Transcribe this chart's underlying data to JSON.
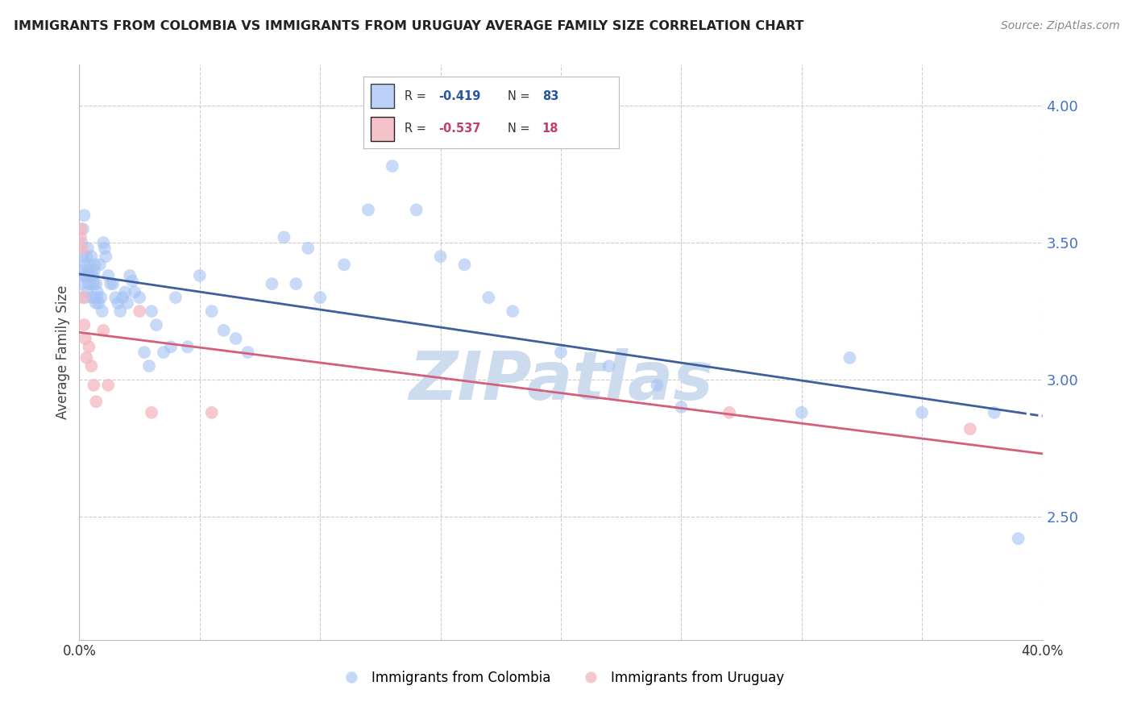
{
  "title": "IMMIGRANTS FROM COLOMBIA VS IMMIGRANTS FROM URUGUAY AVERAGE FAMILY SIZE CORRELATION CHART",
  "source": "Source: ZipAtlas.com",
  "ylabel": "Average Family Size",
  "y_ticks": [
    2.5,
    3.0,
    3.5,
    4.0
  ],
  "x_min": 0.0,
  "x_max": 40.0,
  "y_min": 2.05,
  "y_max": 4.15,
  "colombia_color": "#a4c2f4",
  "uruguay_color": "#f4b8c1",
  "colombia_line_color": "#3d5f9e",
  "uruguay_line_color": "#d45f7a",
  "axis_label_color": "#4472c4",
  "colombia_R": -0.419,
  "colombia_N": 83,
  "uruguay_R": -0.537,
  "uruguay_N": 18,
  "colombia_points_x": [
    0.05,
    0.08,
    0.1,
    0.12,
    0.15,
    0.18,
    0.2,
    0.22,
    0.25,
    0.28,
    0.3,
    0.32,
    0.35,
    0.38,
    0.4,
    0.42,
    0.45,
    0.48,
    0.5,
    0.55,
    0.58,
    0.6,
    0.62,
    0.65,
    0.68,
    0.7,
    0.72,
    0.75,
    0.8,
    0.85,
    0.9,
    0.95,
    1.0,
    1.05,
    1.1,
    1.2,
    1.3,
    1.4,
    1.5,
    1.6,
    1.7,
    1.8,
    1.9,
    2.0,
    2.1,
    2.2,
    2.3,
    2.5,
    2.7,
    2.9,
    3.0,
    3.2,
    3.5,
    3.8,
    4.0,
    4.5,
    5.0,
    5.5,
    6.0,
    6.5,
    7.0,
    8.0,
    8.5,
    9.0,
    9.5,
    10.0,
    11.0,
    12.0,
    13.0,
    14.0,
    15.0,
    16.0,
    17.0,
    18.0,
    20.0,
    22.0,
    24.0,
    25.0,
    30.0,
    32.0,
    35.0,
    38.0,
    39.0
  ],
  "colombia_points_y": [
    3.4,
    3.35,
    3.5,
    3.45,
    3.55,
    3.38,
    3.6,
    3.42,
    3.3,
    3.38,
    3.45,
    3.32,
    3.48,
    3.35,
    3.4,
    3.42,
    3.38,
    3.35,
    3.45,
    3.3,
    3.38,
    3.35,
    3.4,
    3.42,
    3.28,
    3.35,
    3.3,
    3.32,
    3.28,
    3.42,
    3.3,
    3.25,
    3.5,
    3.48,
    3.45,
    3.38,
    3.35,
    3.35,
    3.3,
    3.28,
    3.25,
    3.3,
    3.32,
    3.28,
    3.38,
    3.36,
    3.32,
    3.3,
    3.1,
    3.05,
    3.25,
    3.2,
    3.1,
    3.12,
    3.3,
    3.12,
    3.38,
    3.25,
    3.18,
    3.15,
    3.1,
    3.35,
    3.52,
    3.35,
    3.48,
    3.3,
    3.42,
    3.62,
    3.78,
    3.62,
    3.45,
    3.42,
    3.3,
    3.25,
    3.1,
    3.05,
    2.98,
    2.9,
    2.88,
    3.08,
    2.88,
    2.88,
    2.42
  ],
  "uruguay_points_x": [
    0.05,
    0.08,
    0.12,
    0.15,
    0.2,
    0.25,
    0.3,
    0.4,
    0.5,
    0.6,
    0.7,
    1.0,
    1.2,
    2.5,
    3.0,
    5.5,
    27.0,
    37.0
  ],
  "uruguay_points_y": [
    3.52,
    3.55,
    3.48,
    3.3,
    3.2,
    3.15,
    3.08,
    3.12,
    3.05,
    2.98,
    2.92,
    3.18,
    2.98,
    3.25,
    2.88,
    2.88,
    2.88,
    2.82
  ],
  "watermark": "ZIPatlas",
  "watermark_color": "#ccdcee",
  "background_color": "#ffffff",
  "grid_color": "#cccccc",
  "legend_R_color_colombia": "#2855a0",
  "legend_N_color_colombia": "#2855a0",
  "legend_R_color_uruguay": "#c0406a",
  "legend_N_color_uruguay": "#c0406a"
}
